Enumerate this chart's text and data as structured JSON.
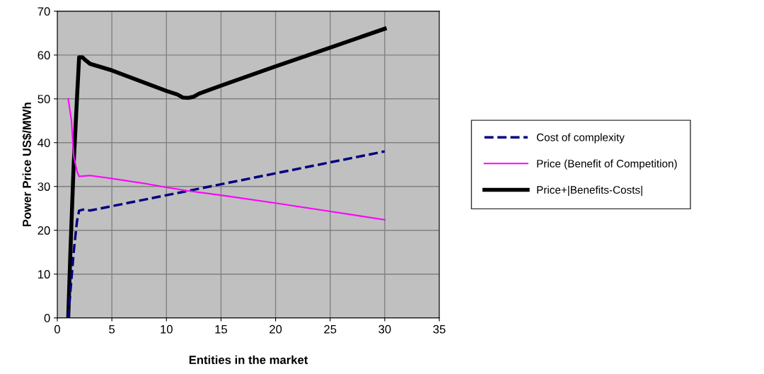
{
  "chart_data": {
    "type": "line",
    "xlabel": "Entities in the market",
    "ylabel": "Power Price US$/MWh",
    "xlim": [
      0,
      35
    ],
    "xticks": [
      0,
      5,
      10,
      15,
      20,
      25,
      30,
      35
    ],
    "ylim": [
      0,
      70
    ],
    "yticks": [
      0,
      10,
      20,
      30,
      40,
      50,
      60,
      70
    ],
    "grid": true,
    "legend": "right",
    "marker": "none",
    "series": [
      {
        "name": "Cost of complexity",
        "color": "#000080",
        "line_style": "dashed",
        "x": [
          1,
          1.2,
          1.5,
          1.8,
          2,
          2.5,
          3,
          5,
          10,
          12,
          15,
          20,
          25,
          30
        ],
        "values": [
          0,
          6,
          15,
          22,
          24.5,
          24.8,
          24.5,
          25.5,
          28,
          29,
          30.5,
          33,
          35.5,
          38
        ]
      },
      {
        "name": "Price (Benefit of Competition)",
        "color": "#ff00ff",
        "line_style": "solid",
        "x": [
          1,
          1.3,
          1.5,
          1.8,
          2,
          2.5,
          3,
          5,
          8,
          10,
          12,
          15,
          20,
          25,
          30
        ],
        "values": [
          50,
          45,
          37,
          33.5,
          32.3,
          32.4,
          32.5,
          31.8,
          30.7,
          29.8,
          29,
          28,
          26.2,
          24.3,
          22.4
        ]
      },
      {
        "name": "Price+|Benefits-Costs|",
        "color": "#000000",
        "line_style": "solid",
        "x": [
          1,
          1.2,
          1.5,
          1.8,
          2,
          2.3,
          2.5,
          3,
          5,
          10,
          11,
          11.5,
          12,
          12.5,
          13,
          15,
          20,
          25,
          30
        ],
        "values": [
          0,
          15,
          35,
          50,
          59.5,
          59.5,
          59,
          58,
          56.5,
          51.8,
          51,
          50.3,
          50.2,
          50.5,
          51.2,
          53,
          57.4,
          61.7,
          66
        ]
      }
    ]
  }
}
